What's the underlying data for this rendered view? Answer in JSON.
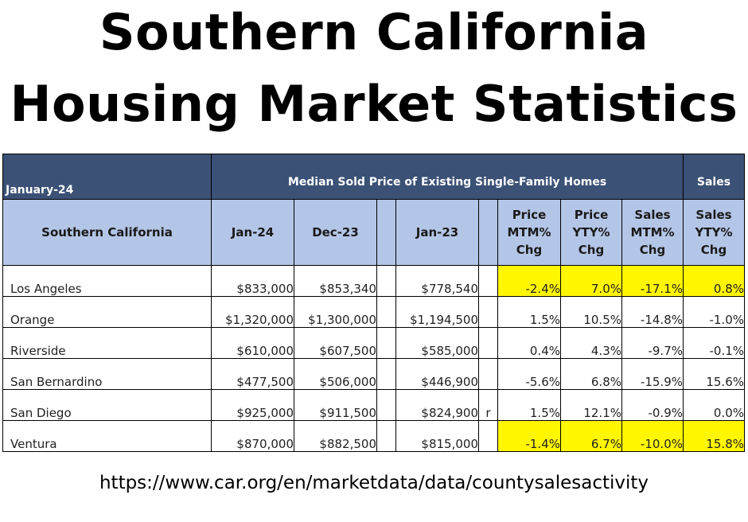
{
  "title": {
    "line1": "Southern California",
    "line2": "Housing Market Statistics"
  },
  "table": {
    "period_label": "January-24",
    "median_price_group_label": "Median Sold Price of Existing Single-Family Homes",
    "sales_group_label": "Sales",
    "headers": {
      "region": "Southern California",
      "jan24": "Jan-24",
      "dec23": "Dec-23",
      "jan23": "Jan-23",
      "price_mtm": [
        "Price",
        "MTM%",
        "Chg"
      ],
      "price_yty": [
        "Price",
        "YTY%",
        "Chg"
      ],
      "sales_mtm": [
        "Sales",
        "MTM%",
        "Chg"
      ],
      "sales_yty": [
        "Sales",
        "YTY%",
        "Chg"
      ]
    },
    "rows": [
      {
        "county": "Los Angeles",
        "jan24": "$833,000",
        "dec23": "$853,340",
        "jan23": "$778,540",
        "flag": "",
        "price_mtm": "-2.4%",
        "price_yty": "7.0%",
        "sales_mtm": "-17.1%",
        "sales_yty": "0.8%",
        "highlight": true
      },
      {
        "county": "Orange",
        "jan24": "$1,320,000",
        "dec23": "$1,300,000",
        "jan23": "$1,194,500",
        "flag": "",
        "price_mtm": "1.5%",
        "price_yty": "10.5%",
        "sales_mtm": "-14.8%",
        "sales_yty": "-1.0%",
        "highlight": false
      },
      {
        "county": "Riverside",
        "jan24": "$610,000",
        "dec23": "$607,500",
        "jan23": "$585,000",
        "flag": "",
        "price_mtm": "0.4%",
        "price_yty": "4.3%",
        "sales_mtm": "-9.7%",
        "sales_yty": "-0.1%",
        "highlight": false
      },
      {
        "county": "San Bernardino",
        "jan24": "$477,500",
        "dec23": "$506,000",
        "jan23": "$446,900",
        "flag": "",
        "price_mtm": "-5.6%",
        "price_yty": "6.8%",
        "sales_mtm": "-15.9%",
        "sales_yty": "15.6%",
        "highlight": false
      },
      {
        "county": "San Diego",
        "jan24": "$925,000",
        "dec23": "$911,500",
        "jan23": "$824,900",
        "flag": "r",
        "price_mtm": "1.5%",
        "price_yty": "12.1%",
        "sales_mtm": "-0.9%",
        "sales_yty": "0.0%",
        "highlight": false
      },
      {
        "county": "Ventura",
        "jan24": "$870,000",
        "dec23": "$882,500",
        "jan23": "$815,000",
        "flag": "",
        "price_mtm": "-1.4%",
        "price_yty": "6.7%",
        "sales_mtm": "-10.0%",
        "sales_yty": "15.8%",
        "highlight": true
      }
    ]
  },
  "highlight_color": "#fff600",
  "source_url": "https://www.car.org/en/marketdata/data/countysalesactivity"
}
